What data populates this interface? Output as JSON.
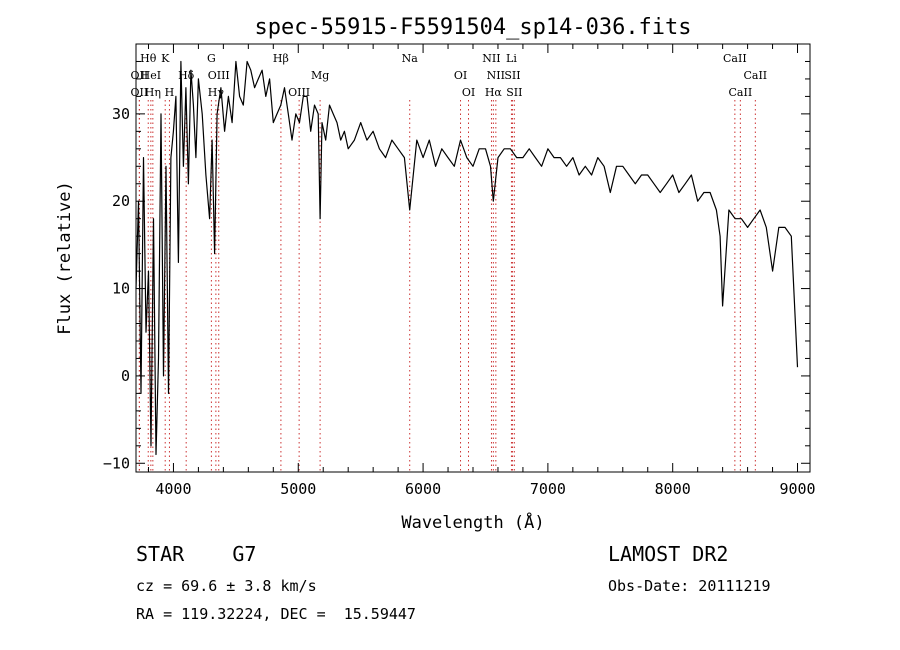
{
  "chart_data": {
    "type": "line",
    "title": "spec-55915-F5591504_sp14-036.fits",
    "xlabel": "Wavelength (Å)",
    "ylabel": "Flux (relative)",
    "xlim": [
      3700,
      9100
    ],
    "ylim": [
      -11,
      38
    ],
    "xticks": [
      4000,
      5000,
      6000,
      7000,
      8000,
      9000
    ],
    "yticks": [
      -10,
      0,
      10,
      20,
      30
    ],
    "grid": false,
    "series": [
      {
        "x": [
          3700,
          3720,
          3740,
          3760,
          3780,
          3800,
          3820,
          3840,
          3860,
          3880,
          3900,
          3920,
          3940,
          3960,
          3980,
          4000,
          4020,
          4040,
          4060,
          4080,
          4100,
          4120,
          4140,
          4160,
          4180,
          4200,
          4230,
          4260,
          4290,
          4310,
          4330,
          4350,
          4380,
          4410,
          4440,
          4470,
          4500,
          4530,
          4560,
          4590,
          4620,
          4650,
          4680,
          4710,
          4740,
          4770,
          4800,
          4830,
          4860,
          4890,
          4920,
          4950,
          4980,
          5010,
          5040,
          5070,
          5100,
          5130,
          5160,
          5175,
          5190,
          5220,
          5250,
          5280,
          5310,
          5340,
          5370,
          5400,
          5450,
          5500,
          5550,
          5600,
          5650,
          5700,
          5750,
          5800,
          5850,
          5893,
          5950,
          6000,
          6050,
          6100,
          6150,
          6200,
          6250,
          6300,
          6350,
          6400,
          6450,
          6500,
          6540,
          6563,
          6600,
          6650,
          6700,
          6750,
          6800,
          6850,
          6900,
          6950,
          7000,
          7050,
          7100,
          7150,
          7200,
          7250,
          7300,
          7350,
          7400,
          7450,
          7500,
          7550,
          7600,
          7650,
          7700,
          7750,
          7800,
          7850,
          7900,
          7950,
          8000,
          8050,
          8100,
          8150,
          8200,
          8250,
          8300,
          8350,
          8380,
          8400,
          8450,
          8500,
          8550,
          8600,
          8650,
          8700,
          8750,
          8800,
          8850,
          8900,
          8950,
          9000
        ],
        "y": [
          10,
          20,
          -2,
          25,
          5,
          12,
          -8,
          18,
          -9,
          2,
          30,
          0,
          24,
          -2,
          25,
          28,
          32,
          13,
          36,
          24,
          33,
          22,
          35,
          31,
          25,
          34,
          30,
          23,
          18,
          27,
          14,
          30,
          33,
          28,
          32,
          29,
          36,
          32,
          31,
          36,
          35,
          33,
          34,
          35,
          32,
          34,
          29,
          30,
          31,
          33,
          30,
          27,
          30,
          29,
          32,
          32,
          28,
          31,
          30,
          18,
          29,
          27,
          31,
          30,
          29,
          27,
          28,
          26,
          27,
          29,
          27,
          28,
          26,
          25,
          27,
          26,
          25,
          19,
          27,
          25,
          27,
          24,
          26,
          25,
          24,
          27,
          25,
          24,
          26,
          26,
          24,
          20,
          25,
          26,
          26,
          25,
          25,
          26,
          25,
          24,
          26,
          25,
          25,
          24,
          25,
          23,
          24,
          23,
          25,
          24,
          21,
          24,
          24,
          23,
          22,
          23,
          23,
          22,
          21,
          22,
          23,
          21,
          22,
          23,
          20,
          21,
          21,
          19,
          16,
          8,
          19,
          18,
          18,
          17,
          18,
          19,
          17,
          12,
          17,
          17,
          16,
          1
        ]
      }
    ],
    "line_markers": [
      {
        "label": "Hθ",
        "x": 3798,
        "row": 1
      },
      {
        "label": "OII",
        "x": 3727,
        "row": 2
      },
      {
        "label": "OII",
        "x": 3727,
        "row": 3
      },
      {
        "label": "HeI",
        "x": 3819,
        "row": 2
      },
      {
        "label": "Hη",
        "x": 3835,
        "row": 3
      },
      {
        "label": "K",
        "x": 3934,
        "row": 1
      },
      {
        "label": "H",
        "x": 3968,
        "row": 3
      },
      {
        "label": "Hδ",
        "x": 4102,
        "row": 2
      },
      {
        "label": "G",
        "x": 4304,
        "row": 1
      },
      {
        "label": "OIII",
        "x": 4363,
        "row": 2
      },
      {
        "label": "Hγ",
        "x": 4340,
        "row": 3
      },
      {
        "label": "Hβ",
        "x": 4861,
        "row": 1
      },
      {
        "label": "OIII",
        "x": 5007,
        "row": 3
      },
      {
        "label": "Mg",
        "x": 5175,
        "row": 2
      },
      {
        "label": "Na",
        "x": 5893,
        "row": 1
      },
      {
        "label": "OI",
        "x": 6300,
        "row": 2
      },
      {
        "label": "OI",
        "x": 6364,
        "row": 3
      },
      {
        "label": "NII",
        "x": 6548,
        "row": 1
      },
      {
        "label": "NII",
        "x": 6583,
        "row": 2
      },
      {
        "label": "Hα",
        "x": 6563,
        "row": 3
      },
      {
        "label": "Li",
        "x": 6708,
        "row": 1
      },
      {
        "label": "SII",
        "x": 6716,
        "row": 2
      },
      {
        "label": "SII",
        "x": 6731,
        "row": 3
      },
      {
        "label": "CaII",
        "x": 8498,
        "row": 1
      },
      {
        "label": "CaII",
        "x": 8662,
        "row": 2
      },
      {
        "label": "CaII",
        "x": 8542,
        "row": 3
      }
    ]
  },
  "info": {
    "object_class": "STAR    G7",
    "survey": "LAMOST DR2",
    "cz": "cz = 69.6 ± 3.8 km/s",
    "obs_date": "Obs-Date: 20111219",
    "coords": "RA = 119.32224, DEC =  15.59447"
  },
  "colors": {
    "spectrum": "#000000",
    "marker_line": "#cc3333",
    "axes": "#000000"
  }
}
